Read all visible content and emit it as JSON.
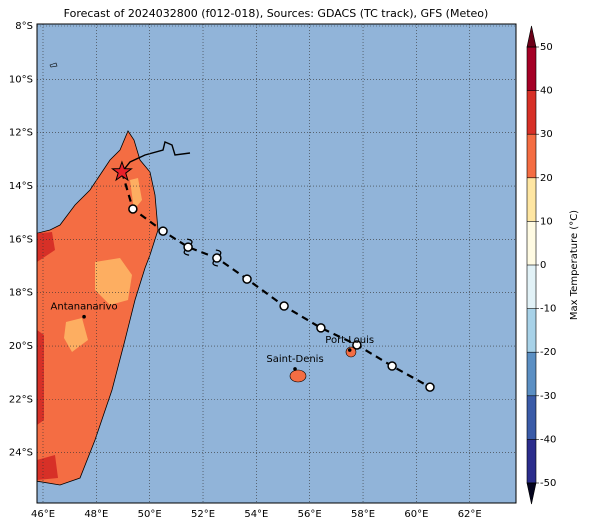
{
  "title": "Forecast of 2024032800 (f012-018), Sources: GDACS (TC track), GFS (Meteo)",
  "x_ticks": [
    {
      "value": 46,
      "label": "46°E"
    },
    {
      "value": 48,
      "label": "48°E"
    },
    {
      "value": 50,
      "label": "50°E"
    },
    {
      "value": 52,
      "label": "52°E"
    },
    {
      "value": 54,
      "label": "54°E"
    },
    {
      "value": 56,
      "label": "56°E"
    },
    {
      "value": 58,
      "label": "58°E"
    },
    {
      "value": 60,
      "label": "60°E"
    },
    {
      "value": 62,
      "label": "62°E"
    }
  ],
  "y_ticks": [
    {
      "value": -8,
      "label": "8°S"
    },
    {
      "value": -10,
      "label": "10°S"
    },
    {
      "value": -12,
      "label": "12°S"
    },
    {
      "value": -14,
      "label": "14°S"
    },
    {
      "value": -16,
      "label": "16°S"
    },
    {
      "value": -18,
      "label": "18°S"
    },
    {
      "value": -20,
      "label": "20°S"
    },
    {
      "value": -22,
      "label": "22°S"
    },
    {
      "value": -24,
      "label": "24°S"
    }
  ],
  "colorbar": {
    "label": "Max Temperature (°C)",
    "ticks": [
      -50,
      -40,
      -30,
      -20,
      -10,
      0,
      10,
      20,
      30,
      40,
      50
    ],
    "colors": [
      "#2b2d8c",
      "#3a5ba8",
      "#5b8fc3",
      "#a8d2e8",
      "#e2f2f7",
      "#fffbe3",
      "#fee6a2",
      "#f46d43",
      "#d73027",
      "#a50026"
    ]
  },
  "cities": [
    {
      "name": "Antananarivo",
      "lon": 47.54,
      "lat": -18.9
    },
    {
      "name": "Saint-Denis",
      "lon": 55.45,
      "lat": -20.86
    },
    {
      "name": "Port Louis",
      "lon": 57.5,
      "lat": -20.15
    }
  ],
  "track": [
    {
      "lon": 48.96,
      "lat": -13.47
    },
    {
      "lon": 49.37,
      "lat": -14.86
    },
    {
      "lon": 50.5,
      "lat": -15.69
    },
    {
      "lon": 51.44,
      "lat": -16.29
    },
    {
      "lon": 52.52,
      "lat": -16.7
    },
    {
      "lon": 53.65,
      "lat": -17.49
    },
    {
      "lon": 55.04,
      "lat": -18.5
    },
    {
      "lon": 56.42,
      "lat": -19.32
    },
    {
      "lon": 57.77,
      "lat": -19.96
    },
    {
      "lon": 59.09,
      "lat": -20.75
    },
    {
      "lon": 60.51,
      "lat": -21.54
    }
  ]
}
